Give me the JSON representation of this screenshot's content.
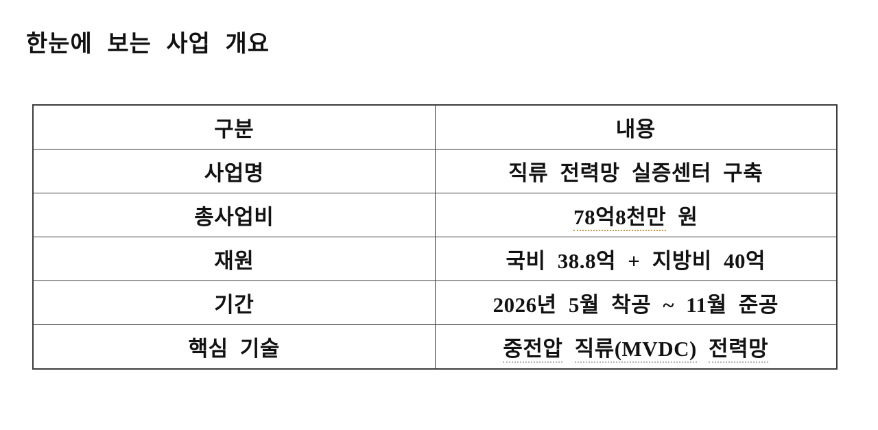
{
  "document": {
    "title": "한눈에 보는 사업 개요"
  },
  "colors": {
    "text": "#121212",
    "table_border": "#3c3c3c",
    "spell_underline_orange": "#cf9340",
    "spell_underline_gray": "#b3b3b3",
    "background": "#ffffff"
  },
  "table": {
    "column_headers": [
      "구분",
      "내용"
    ],
    "rows": [
      {
        "category": "사업명",
        "content": "직류 전력망 실증센터 구축"
      },
      {
        "category": "총사업비",
        "content": "78억8천만 원",
        "content_parts": [
          {
            "text": "78억8천만",
            "spell_underline": "orange"
          },
          {
            "text": " 원",
            "spell_underline": "none"
          }
        ]
      },
      {
        "category": "재원",
        "content": "국비 38.8억 + 지방비 40억"
      },
      {
        "category": "기간",
        "content": "2026년 5월 착공 ~ 11월 준공"
      },
      {
        "category": "핵심 기술",
        "content": "중전압 직류(MVDC) 전력망",
        "content_parts": [
          {
            "text": "중전압",
            "spell_underline": "gray"
          },
          {
            "text": " ",
            "spell_underline": "none"
          },
          {
            "text": "직류(MVDC)",
            "spell_underline": "gray"
          },
          {
            "text": " ",
            "spell_underline": "none"
          },
          {
            "text": "전력망",
            "spell_underline": "gray"
          }
        ]
      }
    ]
  }
}
